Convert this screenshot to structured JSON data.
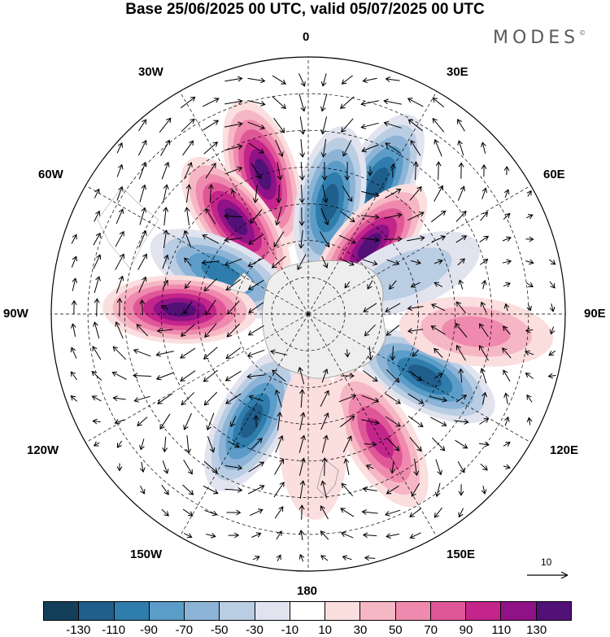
{
  "title": "Base 25/06/2025 00 UTC, valid 05/07/2025 00 UTC",
  "logo": {
    "text": "MODES",
    "mark": "©"
  },
  "map": {
    "projection": "south-polar-stereographic",
    "longitude_labels": [
      {
        "id": "0",
        "text": "0"
      },
      {
        "id": "30E",
        "text": "30E"
      },
      {
        "id": "60E",
        "text": "60E"
      },
      {
        "id": "90E",
        "text": "90E"
      },
      {
        "id": "120E",
        "text": "120E"
      },
      {
        "id": "150E",
        "text": "150E"
      },
      {
        "id": "180",
        "text": "180"
      },
      {
        "id": "150W",
        "text": "150W"
      },
      {
        "id": "120W",
        "text": "120W"
      },
      {
        "id": "90W",
        "text": "90W"
      },
      {
        "id": "60W",
        "text": "60W"
      },
      {
        "id": "30W",
        "text": "30W"
      }
    ],
    "anomaly_centers": [
      {
        "name": "positive",
        "lon": -18,
        "lat": -50,
        "value": 130
      },
      {
        "name": "negative",
        "lon": 28,
        "lat": -50,
        "value": -110
      },
      {
        "name": "positive",
        "lon": -38,
        "lat": -58,
        "value": 130
      },
      {
        "name": "negative",
        "lon": 11,
        "lat": -59,
        "value": -110
      },
      {
        "name": "positive",
        "lon": 42,
        "lat": -65,
        "value": 130
      },
      {
        "name": "negative",
        "lon": 68,
        "lat": -61,
        "value": -40
      },
      {
        "name": "negative",
        "lon": -65,
        "lat": -64,
        "value": -90
      },
      {
        "name": "positive",
        "lon": -88,
        "lat": -55,
        "value": 130
      },
      {
        "name": "negative",
        "lon": -152,
        "lat": -57,
        "value": -110
      },
      {
        "name": "negative",
        "lon": 118,
        "lat": -54,
        "value": -110
      },
      {
        "name": "positive",
        "lon": 96,
        "lat": -44,
        "value": 50
      },
      {
        "name": "positive",
        "lon": 150,
        "lat": -51,
        "value": 100
      },
      {
        "name": "positive",
        "lon": 178,
        "lat": -55,
        "value": 20
      }
    ],
    "wind_reference": {
      "label": "10"
    }
  },
  "colorbar": {
    "colors": [
      "#143f5a",
      "#205e8b",
      "#2f7dad",
      "#5b9cc8",
      "#8db4d6",
      "#b9cde3",
      "#e1e3ef",
      "#ffffff",
      "#fbdede",
      "#f6b7c4",
      "#ef8aae",
      "#e05798",
      "#c4258b",
      "#8f1286",
      "#521177"
    ],
    "ticks": [
      "-130",
      "-110",
      "-90",
      "-70",
      "-50",
      "-30",
      "-10",
      "10",
      "30",
      "50",
      "70",
      "90",
      "110",
      "130"
    ]
  }
}
